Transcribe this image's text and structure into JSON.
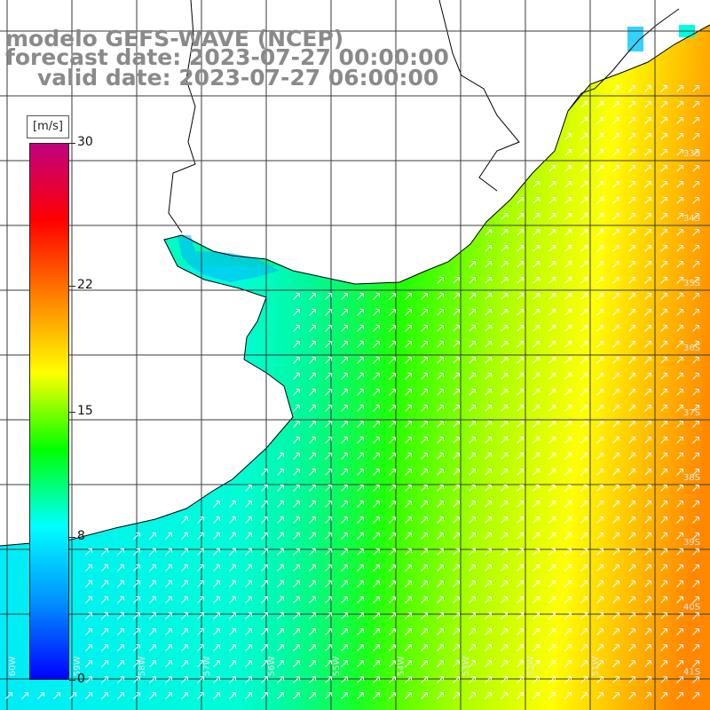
{
  "title": {
    "line1": "modelo GEFS-WAVE (NCEP)",
    "line2": "forecast date: 2023-07-27 00:00:00",
    "line3": "valid date: 2023-07-27 06:00:00"
  },
  "colorbar": {
    "unit": "[m/s]",
    "ticks": [
      {
        "label": "30",
        "value": 30
      },
      {
        "label": "22",
        "value": 22
      },
      {
        "label": "15",
        "value": 15
      },
      {
        "label": "8",
        "value": 8
      },
      {
        "label": "0",
        "value": 0
      }
    ],
    "colors": [
      "#0000ff",
      "#0090ff",
      "#00ffff",
      "#00ff00",
      "#ffff00",
      "#ff8000",
      "#ff0000",
      "#c00080"
    ]
  },
  "map": {
    "lat_labels": [
      "33S",
      "34S",
      "35S",
      "36S",
      "37S",
      "38S",
      "39S",
      "40S",
      "41S"
    ],
    "lon_labels": [
      "60W",
      "59W",
      "58W",
      "57W",
      "56W",
      "55W",
      "54W",
      "53W",
      "52W",
      "51W"
    ],
    "wind_direction": "from south-west (arrows toward north-east)",
    "colors": {
      "land": "#ffffff",
      "grid": "#444444",
      "coast": "#000000",
      "arrows": "#ffffff"
    }
  }
}
